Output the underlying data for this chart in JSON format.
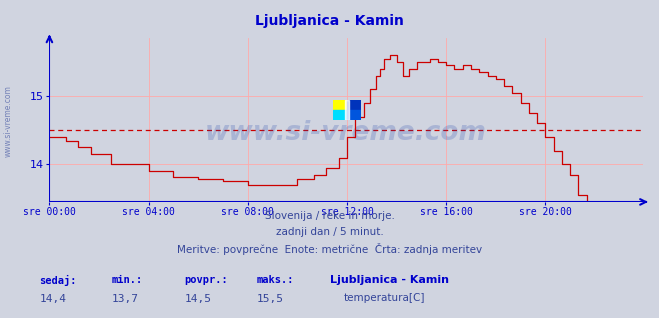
{
  "title": "Ljubljanica - Kamin",
  "title_color": "#0000cc",
  "bg_color": "#d0d4e0",
  "plot_bg_color": "#d0d4e0",
  "line_color": "#cc0000",
  "avg_line_color": "#cc0000",
  "axis_color": "#0000cc",
  "grid_color": "#ffaaaa",
  "text_color": "#334499",
  "xlabel_color": "#0000cc",
  "watermark": "www.si-vreme.com",
  "subtitle1": "Slovenija / reke in morje.",
  "subtitle2": "zadnji dan / 5 minut.",
  "subtitle3": "Meritve: povprečne  Enote: metrične  Črta: zadnja meritev",
  "legend_title": "Ljubljanica - Kamin",
  "legend_label": "temperatura[C]",
  "stats_labels": [
    "sedaj:",
    "min.:",
    "povpr.:",
    "maks.:"
  ],
  "stats_values": [
    "14,4",
    "13,7",
    "14,5",
    "15,5"
  ],
  "ylim_min": 13.45,
  "ylim_max": 15.85,
  "yticks": [
    14,
    15
  ],
  "avg_value": 14.5,
  "x_tick_labels": [
    "sre 00:00",
    "sre 04:00",
    "sre 08:00",
    "sre 12:00",
    "sre 16:00",
    "sre 20:00"
  ],
  "x_tick_positions": [
    0,
    48,
    96,
    144,
    192,
    240
  ],
  "x_max": 287,
  "n_points": 288
}
